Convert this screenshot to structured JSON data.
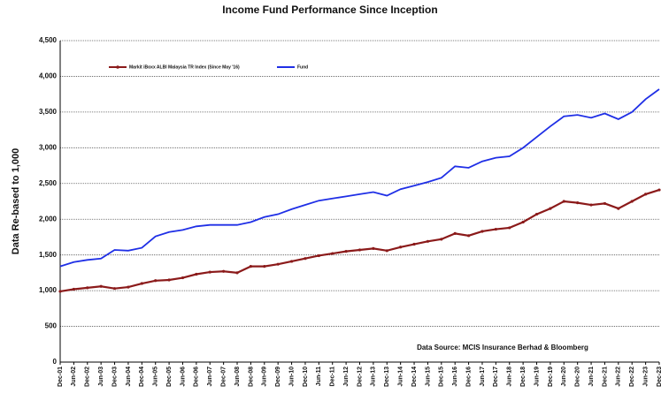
{
  "chart_data": {
    "type": "line",
    "title": "Income Fund Performance Since Inception",
    "ylabel": "Data Re-based to 1,000",
    "annotation": "Data Source: MCIS Insurance Berhad & Bloomberg",
    "categories": [
      "Dec-01",
      "Jun-02",
      "Dec-02",
      "Jun-03",
      "Dec-03",
      "Jun-04",
      "Dec-04",
      "Jun-05",
      "Dec-05",
      "Jun-06",
      "Dec-06",
      "Jun-07",
      "Dec-07",
      "Jun-08",
      "Dec-08",
      "Jun-09",
      "Dec-09",
      "Jun-10",
      "Dec-10",
      "Jun-11",
      "Dec-11",
      "Jun-12",
      "Dec-12",
      "Jun-13",
      "Dec-13",
      "Jun-14",
      "Dec-14",
      "Jun-15",
      "Dec-15",
      "Jun-16",
      "Dec-16",
      "Jun-17",
      "Dec-17",
      "Jun-18",
      "Dec-18",
      "Jun-19",
      "Dec-19",
      "Jun-20",
      "Dec-20",
      "Jun-21",
      "Dec-21",
      "Jun-22",
      "Dec-22",
      "Jun-23",
      "Dec-23"
    ],
    "series": [
      {
        "name": "Markit iBoxx ALBI Malaysia TR Index (Since May '16)",
        "color": "#8b1a1a",
        "markers": true,
        "values": [
          990,
          1020,
          1040,
          1060,
          1030,
          1050,
          1100,
          1140,
          1150,
          1180,
          1230,
          1260,
          1270,
          1250,
          1340,
          1340,
          1370,
          1410,
          1450,
          1490,
          1520,
          1550,
          1570,
          1590,
          1560,
          1610,
          1650,
          1690,
          1720,
          1800,
          1770,
          1830,
          1860,
          1880,
          1960,
          2070,
          2150,
          2250,
          2230,
          2200,
          2220,
          2150,
          2250,
          2350,
          2410
        ]
      },
      {
        "name": "Fund",
        "color": "#1f2fe6",
        "markers": false,
        "values": [
          1340,
          1400,
          1430,
          1450,
          1570,
          1560,
          1600,
          1760,
          1820,
          1850,
          1900,
          1920,
          1920,
          1920,
          1960,
          2030,
          2070,
          2140,
          2200,
          2260,
          2290,
          2320,
          2350,
          2380,
          2330,
          2420,
          2470,
          2520,
          2580,
          2740,
          2720,
          2810,
          2860,
          2880,
          3000,
          3150,
          3300,
          3440,
          3460,
          3420,
          3480,
          3400,
          3500,
          3680,
          3820
        ]
      }
    ],
    "ylim": [
      0,
      4500
    ],
    "yticks": [
      0,
      {
        "value": 500,
        "label": "500"
      },
      {
        "value": 1000,
        "label": "1,000"
      },
      {
        "value": 1500,
        "label": "1,500"
      },
      {
        "value": 2000,
        "label": "2,000"
      },
      {
        "value": 2500,
        "label": "2,500"
      },
      {
        "value": 3000,
        "label": "3,000"
      },
      {
        "value": 3500,
        "label": "3,500"
      },
      {
        "value": 4000,
        "label": "4,000"
      },
      {
        "value": 4500,
        "label": "4,500"
      }
    ],
    "grid": true,
    "legend": "top-left"
  }
}
